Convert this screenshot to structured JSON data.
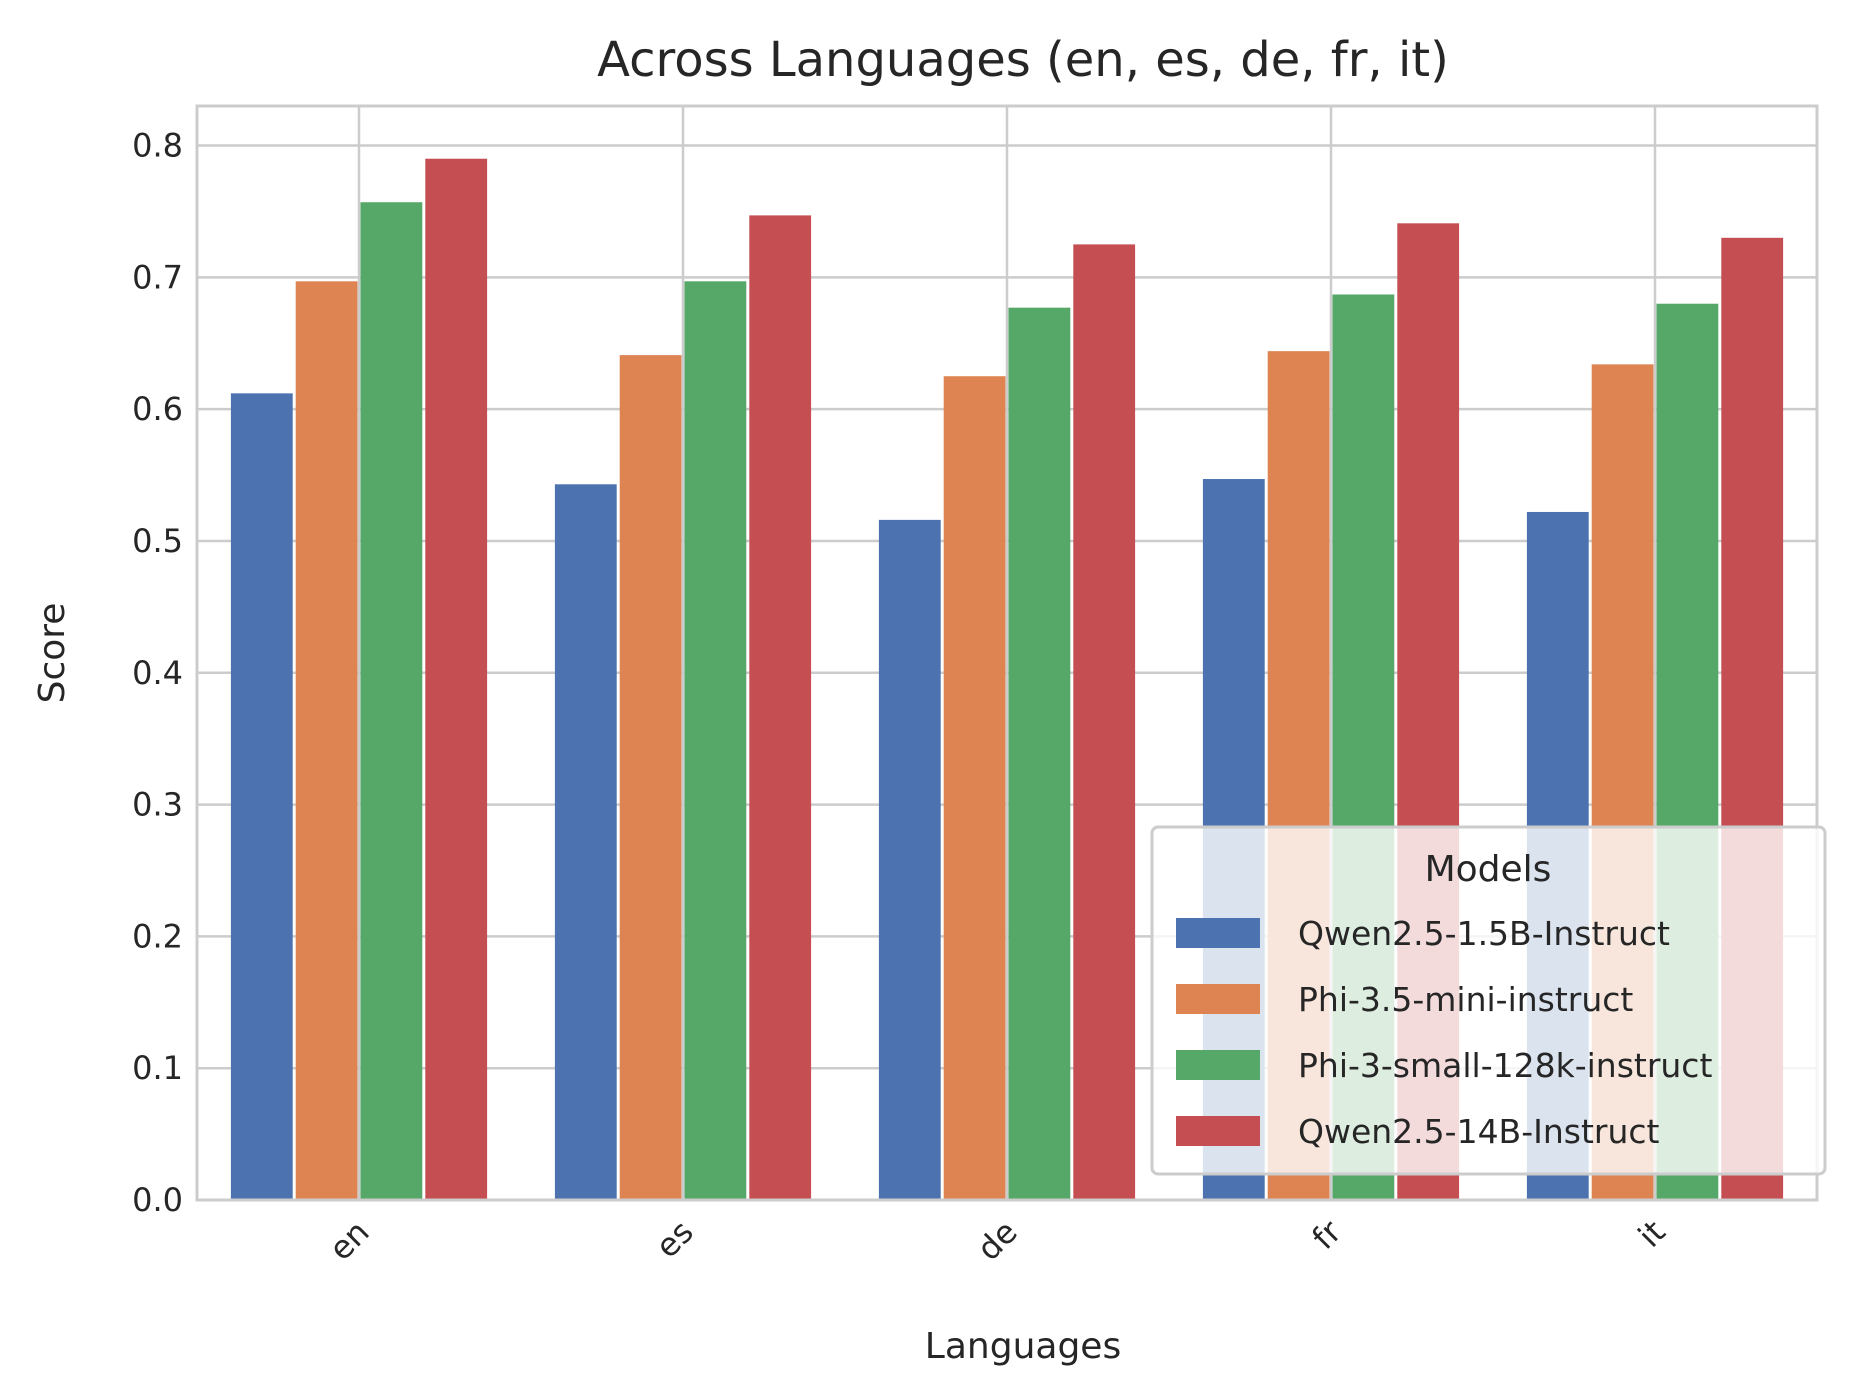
{
  "chart_data": {
    "type": "bar",
    "title": "Across Languages (en, es, de, fr, it)",
    "xlabel": "Languages",
    "ylabel": "Score",
    "categories": [
      "en",
      "es",
      "de",
      "fr",
      "it"
    ],
    "ylim": [
      0,
      0.83
    ],
    "yticks": [
      "0.0",
      "0.1",
      "0.2",
      "0.3",
      "0.4",
      "0.5",
      "0.6",
      "0.7",
      "0.8"
    ],
    "grid": true,
    "legend": {
      "title": "Models",
      "placement": "lower-right"
    },
    "series": [
      {
        "name": "Qwen2.5-1.5B-Instruct",
        "color": "#4c72b0",
        "values": [
          0.612,
          0.543,
          0.516,
          0.547,
          0.522
        ]
      },
      {
        "name": "Phi-3.5-mini-instruct",
        "color": "#dd8452",
        "values": [
          0.697,
          0.641,
          0.625,
          0.644,
          0.634
        ]
      },
      {
        "name": "Phi-3-small-128k-instruct",
        "color": "#55a868",
        "values": [
          0.757,
          0.697,
          0.677,
          0.687,
          0.68
        ]
      },
      {
        "name": "Qwen2.5-14B-Instruct",
        "color": "#c44e52",
        "values": [
          0.79,
          0.747,
          0.725,
          0.741,
          0.73
        ]
      }
    ]
  }
}
